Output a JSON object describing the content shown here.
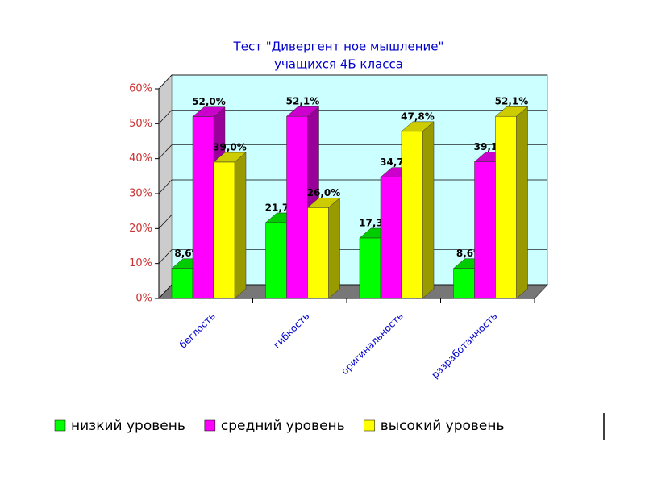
{
  "chart_data": {
    "type": "bar3d",
    "title": "Тест \"Дивергент ное мышление\"",
    "subtitle": "учащихся 4Б класса",
    "categories": [
      "беглость",
      "гибкость",
      "оригинальность",
      "разработанность"
    ],
    "series": [
      {
        "name": "низкий уровень",
        "color": "#00ff00",
        "values": [
          8.6,
          21.7,
          17.3,
          8.6
        ],
        "value_labels": [
          "8,6%",
          "21,7%",
          "17,3%",
          "8,6%"
        ]
      },
      {
        "name": "средний уровень",
        "color": "#ff00ff",
        "values": [
          52.0,
          52.1,
          34.7,
          39.1
        ],
        "value_labels": [
          "52,0%",
          "52,1%",
          "34,7%",
          "39,1%"
        ]
      },
      {
        "name": "высокий уровень",
        "color": "#ffff00",
        "values": [
          39.0,
          26.0,
          47.8,
          52.1
        ],
        "value_labels": [
          "39,0%",
          "26,0%",
          "47,8%",
          "52,1%"
        ]
      }
    ],
    "ylim": [
      0,
      60
    ],
    "yticks": [
      {
        "value": 0,
        "label": "0%"
      },
      {
        "value": 10,
        "label": "10%"
      },
      {
        "value": 20,
        "label": "20%"
      },
      {
        "value": 30,
        "label": "30%"
      },
      {
        "value": 40,
        "label": "40%"
      },
      {
        "value": 50,
        "label": "50%"
      },
      {
        "value": 60,
        "label": "60%"
      }
    ],
    "grid": true,
    "legend": "bottom"
  }
}
